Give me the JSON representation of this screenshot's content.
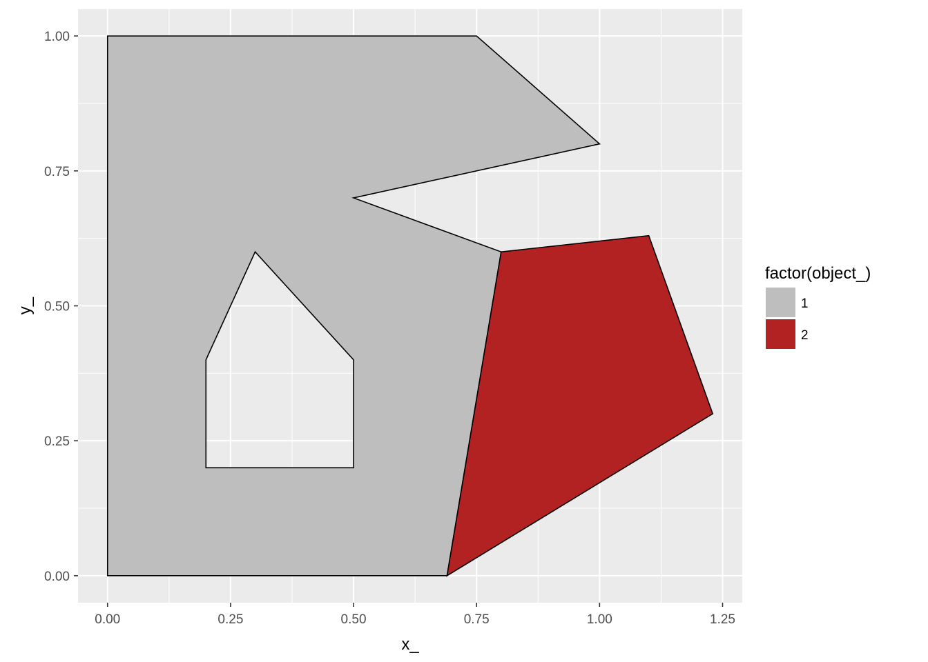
{
  "chart_data": {
    "type": "polygon",
    "xlabel": "x_",
    "ylabel": "y_",
    "xlim": [
      -0.06,
      1.29
    ],
    "ylim": [
      -0.05,
      1.05
    ],
    "x_ticks": [
      0,
      0.25,
      0.5,
      0.75,
      1,
      1.25
    ],
    "x_tick_labels": [
      "0.00",
      "0.25",
      "0.50",
      "0.75",
      "1.00",
      "1.25"
    ],
    "y_ticks": [
      0,
      0.25,
      0.5,
      0.75,
      1
    ],
    "y_tick_labels": [
      "0.00",
      "0.25",
      "0.50",
      "0.75",
      "1.00"
    ],
    "grid": true,
    "legend": {
      "title": "factor(object_)",
      "position": "right",
      "entries": [
        {
          "label": "1",
          "color": "#bebebe"
        },
        {
          "label": "2",
          "color": "#b22222"
        }
      ]
    },
    "objects": [
      {
        "object": "1",
        "fill": "#bebebe",
        "outer": [
          [
            0,
            0
          ],
          [
            0,
            1
          ],
          [
            0.75,
            1
          ],
          [
            1,
            0.8
          ],
          [
            0.5,
            0.7
          ],
          [
            0.8,
            0.6
          ],
          [
            0.69,
            0
          ]
        ],
        "holes": [
          [
            [
              0.2,
              0.2
            ],
            [
              0.5,
              0.2
            ],
            [
              0.5,
              0.4
            ],
            [
              0.3,
              0.6
            ],
            [
              0.2,
              0.4
            ]
          ]
        ]
      },
      {
        "object": "2",
        "fill": "#b22222",
        "outer": [
          [
            0.69,
            0
          ],
          [
            0.8,
            0.6
          ],
          [
            1.1,
            0.63
          ],
          [
            1.23,
            0.3
          ]
        ],
        "holes": []
      }
    ]
  },
  "colors": {
    "panel_background": "#ebebeb",
    "grid_major": "#ffffff",
    "outline": "#000000"
  }
}
